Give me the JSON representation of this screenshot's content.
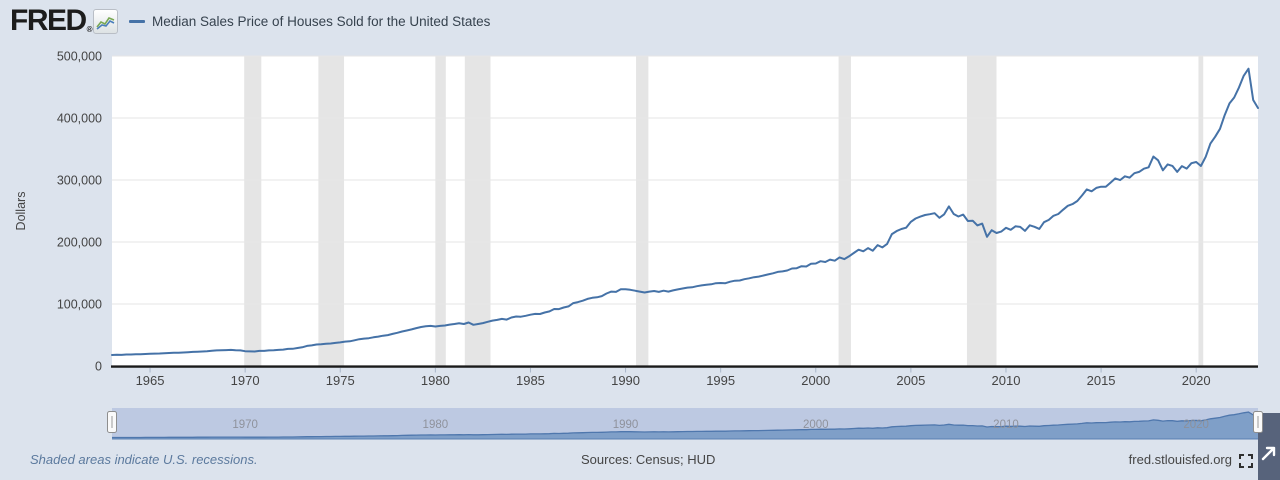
{
  "header": {
    "logo": "FRED",
    "logo_mark": "®",
    "series_title": "Median Sales Price of Houses Sold for the United States"
  },
  "footer": {
    "note": "Shaded areas indicate U.S. recessions.",
    "sources": "Sources: Census; HUD",
    "site": "fred.stlouisfed.org"
  },
  "colors": {
    "bg": "#dce3ed",
    "plot_bg": "#ffffff",
    "grid": "#e6e6e6",
    "recession": "#e5e5e5",
    "axis": "#1a1a1a",
    "tick_text": "#444444",
    "x_tick_mark": "#a9b6c9",
    "line": "#4572a7",
    "sel_band": "#bdc9e2",
    "sel_fill": "#7f9fc8",
    "sel_line": "#4f77ad",
    "sel_label": "#8d9099",
    "handle_fill": "#fafafa",
    "handle_stroke": "#8e8e8e",
    "corner": "#57637b",
    "icon_dark": "#2f2f2f"
  },
  "chart_data": {
    "type": "line",
    "title": "Median Sales Price of Houses Sold for the United States",
    "xlabel": "",
    "ylabel": "Dollars",
    "xlim": [
      1963.0,
      2023.25
    ],
    "ylim": [
      0,
      500000
    ],
    "x_ticks": [
      1965,
      1970,
      1975,
      1980,
      1985,
      1990,
      1995,
      2000,
      2005,
      2010,
      2015,
      2020
    ],
    "y_ticks": [
      0,
      100000,
      200000,
      300000,
      400000,
      500000
    ],
    "grid": true,
    "legend_position": "top-left",
    "recessions": [
      [
        1969.95,
        1970.85
      ],
      [
        1973.85,
        1975.2
      ],
      [
        1980.0,
        1980.55
      ],
      [
        1981.55,
        1982.9
      ],
      [
        1990.55,
        1991.2
      ],
      [
        2001.2,
        2001.85
      ],
      [
        2007.95,
        2009.5
      ],
      [
        2020.12,
        2020.37
      ]
    ],
    "selector_ticks": [
      1970,
      1980,
      1990,
      2000,
      2010,
      2020
    ],
    "series": [
      {
        "name": "Median Sales Price of Houses Sold for the United States",
        "color": "#4572a7",
        "points": [
          [
            1963.0,
            17800
          ],
          [
            1963.25,
            18000
          ],
          [
            1963.5,
            17900
          ],
          [
            1963.75,
            18500
          ],
          [
            1964.0,
            18500
          ],
          [
            1964.25,
            18900
          ],
          [
            1964.5,
            18900
          ],
          [
            1964.75,
            19300
          ],
          [
            1965.0,
            19600
          ],
          [
            1965.25,
            20000
          ],
          [
            1965.5,
            20200
          ],
          [
            1965.75,
            20600
          ],
          [
            1966.0,
            21000
          ],
          [
            1966.25,
            21400
          ],
          [
            1966.5,
            21300
          ],
          [
            1966.75,
            21700
          ],
          [
            1967.0,
            22200
          ],
          [
            1967.25,
            22700
          ],
          [
            1967.5,
            23000
          ],
          [
            1967.75,
            23400
          ],
          [
            1968.0,
            23900
          ],
          [
            1968.25,
            24700
          ],
          [
            1968.5,
            25100
          ],
          [
            1968.75,
            25400
          ],
          [
            1969.0,
            25600
          ],
          [
            1969.25,
            25900
          ],
          [
            1969.5,
            25500
          ],
          [
            1969.75,
            25200
          ],
          [
            1970.0,
            23900
          ],
          [
            1970.25,
            23600
          ],
          [
            1970.5,
            23400
          ],
          [
            1970.75,
            24300
          ],
          [
            1971.0,
            24300
          ],
          [
            1971.25,
            25200
          ],
          [
            1971.5,
            25500
          ],
          [
            1971.75,
            26000
          ],
          [
            1972.0,
            26500
          ],
          [
            1972.25,
            27600
          ],
          [
            1972.5,
            27800
          ],
          [
            1972.75,
            29000
          ],
          [
            1973.0,
            30200
          ],
          [
            1973.25,
            32500
          ],
          [
            1973.5,
            33300
          ],
          [
            1973.75,
            34700
          ],
          [
            1974.0,
            35200
          ],
          [
            1974.25,
            35900
          ],
          [
            1974.5,
            36300
          ],
          [
            1974.75,
            37300
          ],
          [
            1975.0,
            38100
          ],
          [
            1975.25,
            39300
          ],
          [
            1975.5,
            39800
          ],
          [
            1975.75,
            41500
          ],
          [
            1976.0,
            43200
          ],
          [
            1976.25,
            44200
          ],
          [
            1976.5,
            44800
          ],
          [
            1976.75,
            46300
          ],
          [
            1977.0,
            47500
          ],
          [
            1977.25,
            48800
          ],
          [
            1977.5,
            49800
          ],
          [
            1977.75,
            51700
          ],
          [
            1978.0,
            53500
          ],
          [
            1978.25,
            55700
          ],
          [
            1978.5,
            57300
          ],
          [
            1978.75,
            59100
          ],
          [
            1979.0,
            61200
          ],
          [
            1979.25,
            62900
          ],
          [
            1979.5,
            64000
          ],
          [
            1979.75,
            64700
          ],
          [
            1980.0,
            63700
          ],
          [
            1980.25,
            64600
          ],
          [
            1980.5,
            65300
          ],
          [
            1980.75,
            66700
          ],
          [
            1981.0,
            67800
          ],
          [
            1981.25,
            68900
          ],
          [
            1981.5,
            67800
          ],
          [
            1981.75,
            70100
          ],
          [
            1982.0,
            66400
          ],
          [
            1982.25,
            67800
          ],
          [
            1982.5,
            69200
          ],
          [
            1982.75,
            71300
          ],
          [
            1983.0,
            73300
          ],
          [
            1983.25,
            74400
          ],
          [
            1983.5,
            75900
          ],
          [
            1983.75,
            74800
          ],
          [
            1984.0,
            78200
          ],
          [
            1984.25,
            79900
          ],
          [
            1984.5,
            79500
          ],
          [
            1984.75,
            80900
          ],
          [
            1985.0,
            82800
          ],
          [
            1985.25,
            84100
          ],
          [
            1985.5,
            83900
          ],
          [
            1985.75,
            86300
          ],
          [
            1986.0,
            88000
          ],
          [
            1986.25,
            92000
          ],
          [
            1986.5,
            91700
          ],
          [
            1986.75,
            94300
          ],
          [
            1987.0,
            96200
          ],
          [
            1987.25,
            101500
          ],
          [
            1987.5,
            103000
          ],
          [
            1987.75,
            105400
          ],
          [
            1988.0,
            108200
          ],
          [
            1988.25,
            110000
          ],
          [
            1988.5,
            110800
          ],
          [
            1988.75,
            112800
          ],
          [
            1989.0,
            117000
          ],
          [
            1989.25,
            120000
          ],
          [
            1989.5,
            119500
          ],
          [
            1989.75,
            123800
          ],
          [
            1990.0,
            123900
          ],
          [
            1990.25,
            122900
          ],
          [
            1990.5,
            121400
          ],
          [
            1990.75,
            120000
          ],
          [
            1991.0,
            118600
          ],
          [
            1991.25,
            120000
          ],
          [
            1991.5,
            121000
          ],
          [
            1991.75,
            119500
          ],
          [
            1992.0,
            121500
          ],
          [
            1992.25,
            120000
          ],
          [
            1992.5,
            122000
          ],
          [
            1992.75,
            123500
          ],
          [
            1993.0,
            125000
          ],
          [
            1993.25,
            126500
          ],
          [
            1993.5,
            127000
          ],
          [
            1993.75,
            128700
          ],
          [
            1994.0,
            130000
          ],
          [
            1994.25,
            130900
          ],
          [
            1994.5,
            131800
          ],
          [
            1994.75,
            133500
          ],
          [
            1995.0,
            133900
          ],
          [
            1995.25,
            133500
          ],
          [
            1995.5,
            136000
          ],
          [
            1995.75,
            137600
          ],
          [
            1996.0,
            137900
          ],
          [
            1996.25,
            140000
          ],
          [
            1996.5,
            141500
          ],
          [
            1996.75,
            143200
          ],
          [
            1997.0,
            144200
          ],
          [
            1997.25,
            146000
          ],
          [
            1997.5,
            147700
          ],
          [
            1997.75,
            149500
          ],
          [
            1998.0,
            151700
          ],
          [
            1998.25,
            152500
          ],
          [
            1998.5,
            154000
          ],
          [
            1998.75,
            157200
          ],
          [
            1999.0,
            157700
          ],
          [
            1999.25,
            161000
          ],
          [
            1999.5,
            160500
          ],
          [
            1999.75,
            164800
          ],
          [
            2000.0,
            165300
          ],
          [
            2000.25,
            169000
          ],
          [
            2000.5,
            167800
          ],
          [
            2000.75,
            171600
          ],
          [
            2001.0,
            169800
          ],
          [
            2001.25,
            175200
          ],
          [
            2001.5,
            172500
          ],
          [
            2001.75,
            177000
          ],
          [
            2002.0,
            182300
          ],
          [
            2002.25,
            187600
          ],
          [
            2002.5,
            185000
          ],
          [
            2002.75,
            190100
          ],
          [
            2003.0,
            186000
          ],
          [
            2003.25,
            195000
          ],
          [
            2003.5,
            191300
          ],
          [
            2003.75,
            197000
          ],
          [
            2004.0,
            212700
          ],
          [
            2004.25,
            217600
          ],
          [
            2004.5,
            221000
          ],
          [
            2004.75,
            223100
          ],
          [
            2005.0,
            232500
          ],
          [
            2005.25,
            237900
          ],
          [
            2005.5,
            240900
          ],
          [
            2005.75,
            243600
          ],
          [
            2006.0,
            244900
          ],
          [
            2006.25,
            246500
          ],
          [
            2006.5,
            239000
          ],
          [
            2006.75,
            244700
          ],
          [
            2007.0,
            257400
          ],
          [
            2007.25,
            245200
          ],
          [
            2007.5,
            241200
          ],
          [
            2007.75,
            244200
          ],
          [
            2008.0,
            233900
          ],
          [
            2008.25,
            234300
          ],
          [
            2008.5,
            226800
          ],
          [
            2008.75,
            229600
          ],
          [
            2009.0,
            208400
          ],
          [
            2009.25,
            219000
          ],
          [
            2009.5,
            214500
          ],
          [
            2009.75,
            216700
          ],
          [
            2010.0,
            222900
          ],
          [
            2010.25,
            219600
          ],
          [
            2010.5,
            225400
          ],
          [
            2010.75,
            224300
          ],
          [
            2011.0,
            217900
          ],
          [
            2011.25,
            226900
          ],
          [
            2011.5,
            224500
          ],
          [
            2011.75,
            221200
          ],
          [
            2012.0,
            232000
          ],
          [
            2012.25,
            235700
          ],
          [
            2012.5,
            242300
          ],
          [
            2012.75,
            245200
          ],
          [
            2013.0,
            251900
          ],
          [
            2013.25,
            258400
          ],
          [
            2013.5,
            261200
          ],
          [
            2013.75,
            266200
          ],
          [
            2014.0,
            275200
          ],
          [
            2014.25,
            284900
          ],
          [
            2014.5,
            281700
          ],
          [
            2014.75,
            287300
          ],
          [
            2015.0,
            289200
          ],
          [
            2015.25,
            289100
          ],
          [
            2015.5,
            295800
          ],
          [
            2015.75,
            302500
          ],
          [
            2016.0,
            299800
          ],
          [
            2016.25,
            306000
          ],
          [
            2016.5,
            303800
          ],
          [
            2016.75,
            310900
          ],
          [
            2017.0,
            313100
          ],
          [
            2017.25,
            318200
          ],
          [
            2017.5,
            320500
          ],
          [
            2017.75,
            337900
          ],
          [
            2018.0,
            331800
          ],
          [
            2018.25,
            315600
          ],
          [
            2018.5,
            325200
          ],
          [
            2018.75,
            322800
          ],
          [
            2019.0,
            313000
          ],
          [
            2019.25,
            322500
          ],
          [
            2019.5,
            318400
          ],
          [
            2019.75,
            327100
          ],
          [
            2020.0,
            329000
          ],
          [
            2020.25,
            322600
          ],
          [
            2020.5,
            337500
          ],
          [
            2020.75,
            358700
          ],
          [
            2021.0,
            369800
          ],
          [
            2021.25,
            382600
          ],
          [
            2021.5,
            404700
          ],
          [
            2021.75,
            423600
          ],
          [
            2022.0,
            433100
          ],
          [
            2022.25,
            449300
          ],
          [
            2022.5,
            468000
          ],
          [
            2022.75,
            479500
          ],
          [
            2023.0,
            429000
          ],
          [
            2023.25,
            416100
          ]
        ]
      }
    ]
  }
}
